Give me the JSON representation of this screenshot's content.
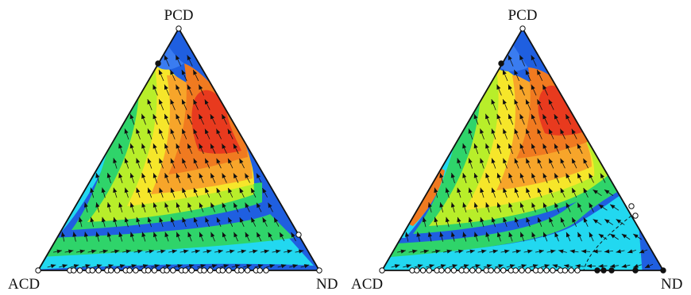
{
  "panels": [
    {
      "id": "left",
      "vertex_labels": {
        "top": "PCD",
        "left": "ACD",
        "right": "ND"
      },
      "hotspot": "upper-right-interior",
      "bottom_point_count": 33,
      "extra_points": [
        "left-edge-upper",
        "right-edge-lower"
      ]
    },
    {
      "id": "right",
      "vertex_labels": {
        "top": "PCD",
        "left": "ACD",
        "right": "ND"
      },
      "hotspot": "upper-right-interior",
      "bottom_point_count": 28,
      "extra_points": [
        "left-edge-upper",
        "right-edge-lower-pair",
        "bottom-right-cluster"
      ]
    }
  ],
  "colors": {
    "deep_blue": "#1f5fe0",
    "blue": "#3a7cf0",
    "cyan": "#22d8f0",
    "green": "#2fd46a",
    "lime": "#b8ee2a",
    "yellow": "#f6e62a",
    "orange": "#f7a52a",
    "dark_orange": "#f07a20",
    "red": "#e83a1e",
    "arrow": "#111111"
  }
}
